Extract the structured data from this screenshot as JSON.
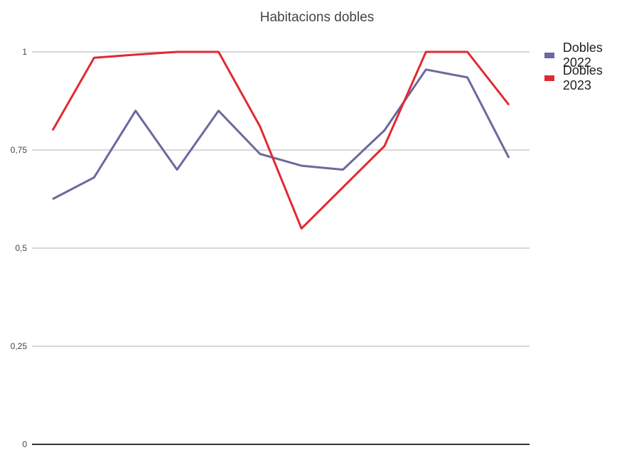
{
  "chart_data": {
    "type": "line",
    "title": "Habitacions dobles",
    "xlabel": "",
    "ylabel": "",
    "x": [
      1,
      2,
      3,
      4,
      5,
      6,
      7,
      8,
      9,
      10,
      11,
      12
    ],
    "ylim": [
      0,
      1
    ],
    "yticks": [
      0,
      0.25,
      0.5,
      0.75,
      1
    ],
    "ytick_labels": [
      "0",
      "0,25",
      "0,5",
      "0,75",
      "1"
    ],
    "grid": true,
    "legend_position": "right",
    "series": [
      {
        "name": "Dobles 2022",
        "color": "#6a6a9e",
        "values": [
          0.625,
          0.68,
          0.85,
          0.7,
          0.85,
          0.74,
          0.71,
          0.7,
          0.8,
          0.955,
          0.935,
          0.73
        ]
      },
      {
        "name": "Dobles 2023",
        "color": "#e02a32",
        "values": [
          0.8,
          0.985,
          0.993,
          1.0,
          1.0,
          0.81,
          0.55,
          0.655,
          0.76,
          1.0,
          1.0,
          0.865
        ]
      }
    ]
  }
}
